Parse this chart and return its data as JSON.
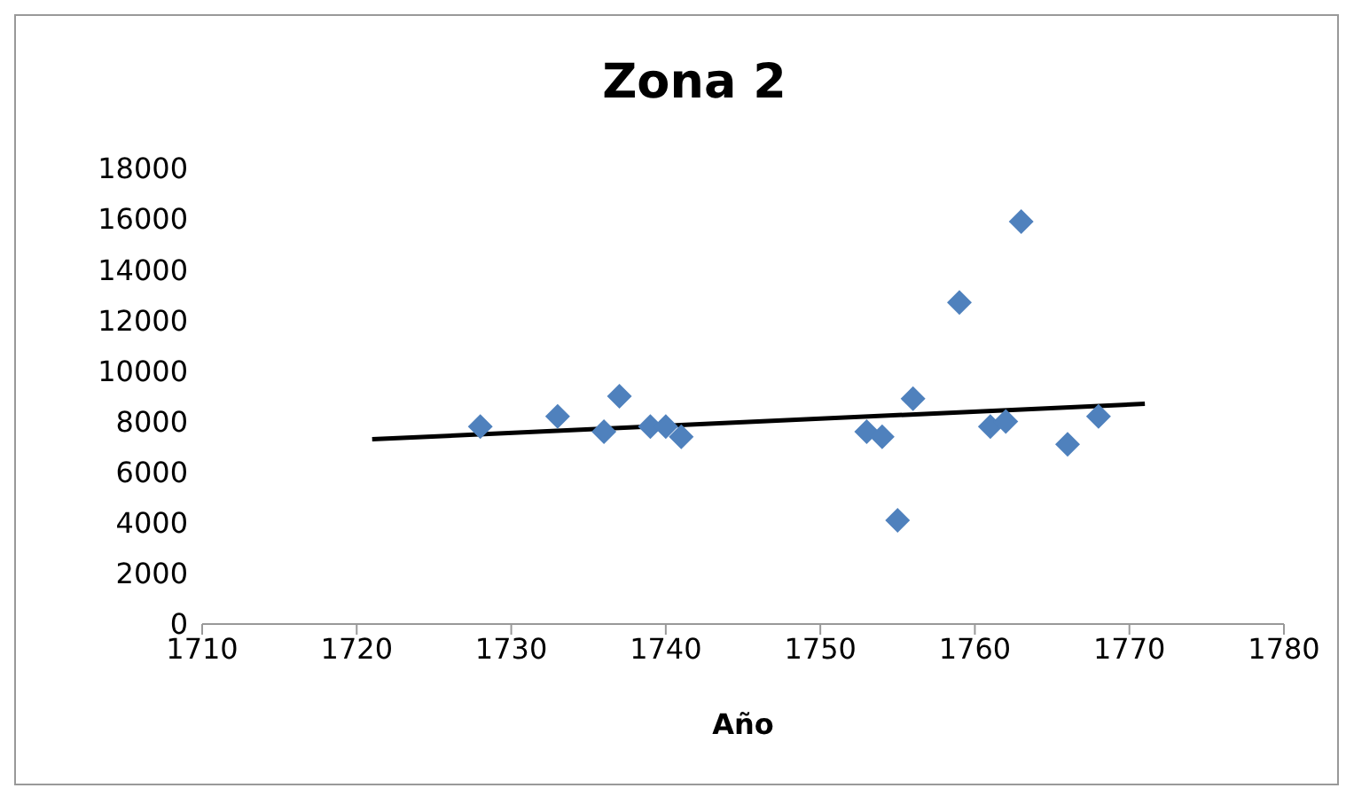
{
  "chart_data": {
    "type": "scatter",
    "title": "Zona 2",
    "xlabel": "Año",
    "xlim": [
      1710,
      1780
    ],
    "xticks": [
      1710,
      1720,
      1730,
      1740,
      1750,
      1760,
      1770,
      1780
    ],
    "ylim": [
      0,
      18000
    ],
    "yticks": [
      0,
      2000,
      4000,
      6000,
      8000,
      10000,
      12000,
      14000,
      16000,
      18000
    ],
    "grid": false,
    "legend": false,
    "series": [
      {
        "marker": "diamond",
        "color": "#4f81bd",
        "x": [
          1728,
          1733,
          1736,
          1737,
          1739,
          1740,
          1741,
          1753,
          1754,
          1755,
          1756,
          1759,
          1761,
          1762,
          1763,
          1766,
          1768
        ],
        "values": [
          7800,
          8200,
          7600,
          9000,
          7800,
          7800,
          7400,
          7600,
          7400,
          4100,
          8900,
          12700,
          7800,
          8000,
          15900,
          7100,
          8200
        ]
      },
      {
        "type": "line",
        "color": "#000000",
        "x": [
          1721,
          1771
        ],
        "values": [
          7300,
          8700
        ]
      }
    ]
  }
}
